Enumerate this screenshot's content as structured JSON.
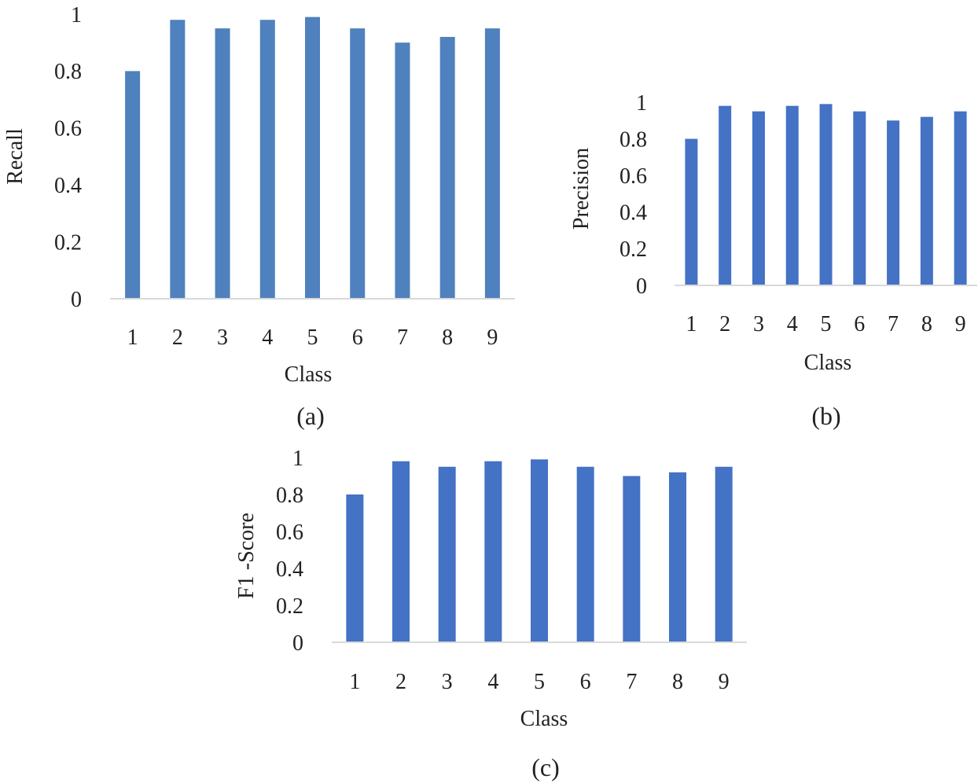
{
  "colors": {
    "bar_a": "#4e81bd",
    "bar_bc": "#4472c4",
    "baseline": "#d9d9d9",
    "text": "#222222"
  },
  "chart_data": [
    {
      "type": "bar",
      "panel_label": "(a)",
      "xlabel": "Class",
      "ylabel": "Recall",
      "categories": [
        "1",
        "2",
        "3",
        "4",
        "5",
        "6",
        "7",
        "8",
        "9"
      ],
      "values": [
        0.8,
        0.98,
        0.95,
        0.98,
        0.99,
        0.95,
        0.9,
        0.92,
        0.95
      ],
      "ylim": [
        0,
        1
      ],
      "yticks": [
        "0",
        "0.2",
        "0.4",
        "0.6",
        "0.8",
        "1"
      ],
      "grid": false,
      "legend": "none"
    },
    {
      "type": "bar",
      "panel_label": "(b)",
      "xlabel": "Class",
      "ylabel": "Precision",
      "categories": [
        "1",
        "2",
        "3",
        "4",
        "5",
        "6",
        "7",
        "8",
        "9"
      ],
      "values": [
        0.8,
        0.98,
        0.95,
        0.98,
        0.99,
        0.95,
        0.9,
        0.92,
        0.95
      ],
      "ylim": [
        0,
        1
      ],
      "yticks": [
        "0",
        "0.2",
        "0.4",
        "0.6",
        "0.8",
        "1"
      ],
      "grid": false,
      "legend": "none"
    },
    {
      "type": "bar",
      "panel_label": "(c)",
      "xlabel": "Class",
      "ylabel": "F1 -Score",
      "categories": [
        "1",
        "2",
        "3",
        "4",
        "5",
        "6",
        "7",
        "8",
        "9"
      ],
      "values": [
        0.8,
        0.98,
        0.95,
        0.98,
        0.99,
        0.95,
        0.9,
        0.92,
        0.95
      ],
      "ylim": [
        0,
        1
      ],
      "yticks": [
        "0",
        "0.2",
        "0.4",
        "0.6",
        "0.8",
        "1"
      ],
      "grid": false,
      "legend": "none"
    }
  ]
}
